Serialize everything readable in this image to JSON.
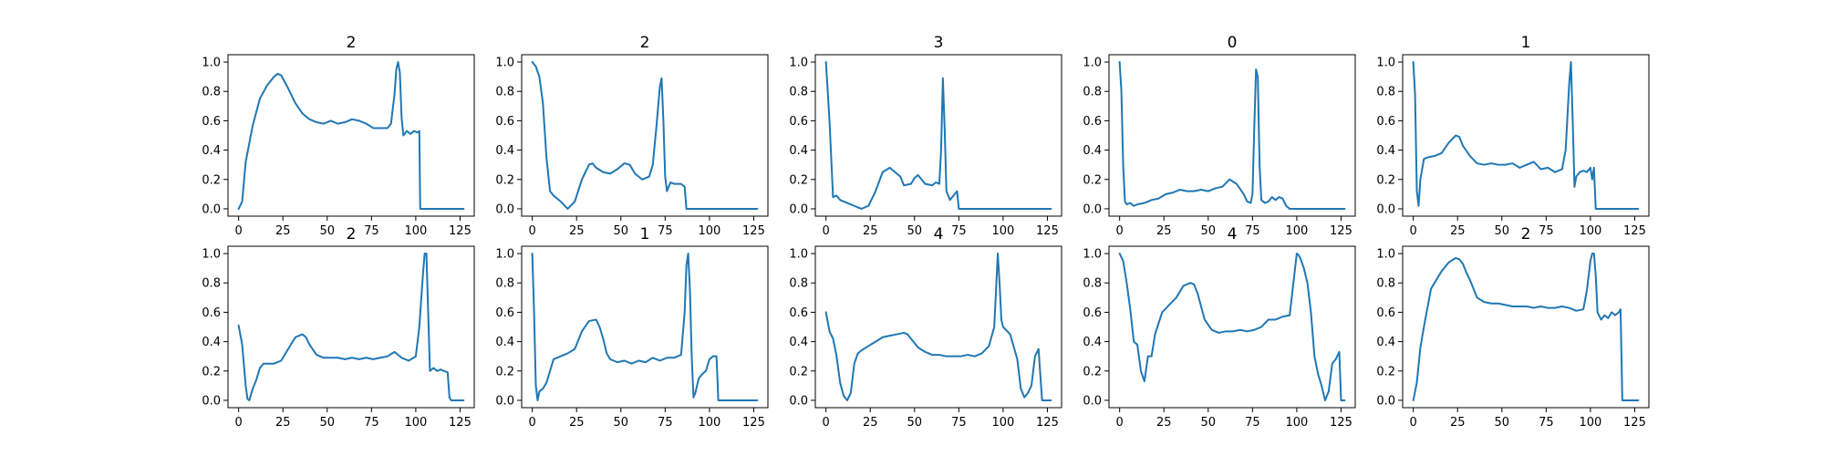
{
  "figure": {
    "line_color": "#1f77b4",
    "rows": 2,
    "cols": 5
  },
  "chart_data": [
    {
      "type": "line",
      "title": "2",
      "xlim": [
        -6,
        133
      ],
      "ylim": [
        -0.05,
        1.05
      ],
      "xticks": [
        0,
        25,
        50,
        75,
        100,
        125
      ],
      "yticks": [
        0.0,
        0.2,
        0.4,
        0.6,
        0.8,
        1.0
      ],
      "x": [
        0,
        2,
        4,
        8,
        12,
        16,
        20,
        22,
        24,
        28,
        32,
        36,
        40,
        44,
        48,
        52,
        56,
        60,
        64,
        68,
        72,
        76,
        80,
        84,
        86,
        88,
        89,
        90,
        91,
        92,
        93,
        95,
        97,
        99,
        101,
        102,
        102.5,
        110,
        120,
        127
      ],
      "y": [
        0.0,
        0.05,
        0.32,
        0.57,
        0.75,
        0.84,
        0.9,
        0.92,
        0.91,
        0.82,
        0.72,
        0.65,
        0.61,
        0.59,
        0.58,
        0.6,
        0.58,
        0.59,
        0.61,
        0.6,
        0.58,
        0.55,
        0.55,
        0.55,
        0.58,
        0.78,
        0.95,
        1.0,
        0.93,
        0.62,
        0.5,
        0.53,
        0.51,
        0.53,
        0.52,
        0.53,
        0.0,
        0.0,
        0.0,
        0.0
      ]
    },
    {
      "type": "line",
      "title": "2",
      "xlim": [
        -6,
        133
      ],
      "ylim": [
        -0.05,
        1.05
      ],
      "xticks": [
        0,
        25,
        50,
        75,
        100,
        125
      ],
      "yticks": [
        0.0,
        0.2,
        0.4,
        0.6,
        0.8,
        1.0
      ],
      "x": [
        0,
        2,
        4,
        6,
        8,
        10,
        12,
        14,
        16,
        20,
        24,
        28,
        32,
        34,
        36,
        40,
        44,
        48,
        52,
        55,
        58,
        62,
        66,
        68,
        70,
        72,
        73,
        74,
        75,
        76,
        78,
        80,
        84,
        86,
        87,
        95,
        110,
        127
      ],
      "y": [
        1.0,
        0.97,
        0.9,
        0.72,
        0.35,
        0.12,
        0.09,
        0.07,
        0.05,
        0.0,
        0.05,
        0.2,
        0.3,
        0.31,
        0.28,
        0.25,
        0.24,
        0.27,
        0.31,
        0.3,
        0.24,
        0.2,
        0.22,
        0.3,
        0.55,
        0.83,
        0.89,
        0.6,
        0.22,
        0.12,
        0.18,
        0.17,
        0.17,
        0.15,
        0.0,
        0.0,
        0.0,
        0.0
      ]
    },
    {
      "type": "line",
      "title": "3",
      "xlim": [
        -6,
        133
      ],
      "ylim": [
        -0.05,
        1.05
      ],
      "xticks": [
        0,
        25,
        50,
        75,
        100,
        125
      ],
      "yticks": [
        0.0,
        0.2,
        0.4,
        0.6,
        0.8,
        1.0
      ],
      "x": [
        0,
        2,
        4,
        6,
        8,
        12,
        16,
        20,
        24,
        28,
        32,
        36,
        40,
        42,
        44,
        48,
        50,
        52,
        56,
        60,
        62,
        64,
        65,
        66,
        67,
        68,
        70,
        74,
        75,
        80,
        100,
        127
      ],
      "y": [
        1.0,
        0.6,
        0.08,
        0.09,
        0.06,
        0.04,
        0.02,
        0.0,
        0.02,
        0.12,
        0.25,
        0.28,
        0.24,
        0.22,
        0.16,
        0.17,
        0.21,
        0.23,
        0.17,
        0.16,
        0.18,
        0.17,
        0.4,
        0.89,
        0.55,
        0.12,
        0.06,
        0.12,
        0.0,
        0.0,
        0.0,
        0.0
      ]
    },
    {
      "type": "line",
      "title": "0",
      "xlim": [
        -6,
        133
      ],
      "ylim": [
        -0.05,
        1.05
      ],
      "xticks": [
        0,
        25,
        50,
        75,
        100,
        125
      ],
      "yticks": [
        0.0,
        0.2,
        0.4,
        0.6,
        0.8,
        1.0
      ],
      "x": [
        0,
        1,
        2,
        3,
        4,
        6,
        8,
        10,
        14,
        18,
        22,
        26,
        30,
        34,
        38,
        42,
        46,
        50,
        54,
        58,
        62,
        66,
        70,
        72,
        74,
        75,
        76,
        77,
        78,
        79,
        80,
        82,
        84,
        86,
        88,
        90,
        92,
        94,
        96,
        100,
        127
      ],
      "y": [
        1.0,
        0.8,
        0.3,
        0.05,
        0.03,
        0.04,
        0.02,
        0.03,
        0.04,
        0.06,
        0.07,
        0.1,
        0.11,
        0.13,
        0.12,
        0.12,
        0.13,
        0.12,
        0.14,
        0.15,
        0.2,
        0.17,
        0.1,
        0.05,
        0.04,
        0.1,
        0.55,
        0.95,
        0.9,
        0.3,
        0.06,
        0.04,
        0.05,
        0.08,
        0.06,
        0.08,
        0.07,
        0.02,
        0.0,
        0.0,
        0.0
      ]
    },
    {
      "type": "line",
      "title": "1",
      "xlim": [
        -6,
        133
      ],
      "ylim": [
        -0.05,
        1.05
      ],
      "xticks": [
        0,
        25,
        50,
        75,
        100,
        125
      ],
      "yticks": [
        0.0,
        0.2,
        0.4,
        0.6,
        0.8,
        1.0
      ],
      "x": [
        0,
        1,
        2,
        3,
        4,
        6,
        8,
        12,
        16,
        20,
        24,
        26,
        28,
        32,
        36,
        40,
        44,
        48,
        52,
        56,
        60,
        64,
        68,
        72,
        76,
        80,
        84,
        86,
        88,
        89,
        90,
        91,
        92,
        94,
        96,
        98,
        100,
        101,
        102,
        103,
        110,
        127
      ],
      "y": [
        1.0,
        0.78,
        0.12,
        0.02,
        0.2,
        0.34,
        0.35,
        0.36,
        0.38,
        0.45,
        0.5,
        0.49,
        0.43,
        0.36,
        0.31,
        0.3,
        0.31,
        0.3,
        0.3,
        0.31,
        0.28,
        0.3,
        0.32,
        0.27,
        0.28,
        0.25,
        0.27,
        0.4,
        0.85,
        1.0,
        0.6,
        0.15,
        0.22,
        0.25,
        0.26,
        0.25,
        0.28,
        0.2,
        0.28,
        0.0,
        0.0,
        0.0
      ]
    },
    {
      "type": "line",
      "title": "2",
      "xlim": [
        -6,
        133
      ],
      "ylim": [
        -0.05,
        1.05
      ],
      "xticks": [
        0,
        25,
        50,
        75,
        100,
        125
      ],
      "yticks": [
        0.0,
        0.2,
        0.4,
        0.6,
        0.8,
        1.0
      ],
      "x": [
        0,
        2,
        4,
        5,
        6,
        8,
        10,
        12,
        14,
        16,
        20,
        24,
        28,
        32,
        36,
        38,
        40,
        44,
        48,
        52,
        56,
        60,
        64,
        68,
        72,
        76,
        80,
        84,
        88,
        92,
        96,
        100,
        102,
        104,
        105,
        106,
        107,
        108,
        110,
        112,
        114,
        116,
        118,
        119,
        120,
        122,
        127
      ],
      "y": [
        0.51,
        0.38,
        0.1,
        0.01,
        0.0,
        0.08,
        0.14,
        0.22,
        0.25,
        0.25,
        0.25,
        0.27,
        0.35,
        0.43,
        0.45,
        0.43,
        0.38,
        0.31,
        0.29,
        0.29,
        0.29,
        0.28,
        0.29,
        0.28,
        0.29,
        0.28,
        0.29,
        0.3,
        0.33,
        0.29,
        0.27,
        0.3,
        0.5,
        0.85,
        1.0,
        1.0,
        0.6,
        0.2,
        0.22,
        0.2,
        0.21,
        0.2,
        0.19,
        0.02,
        0.0,
        0.0,
        0.0
      ]
    },
    {
      "type": "line",
      "title": "1",
      "xlim": [
        -6,
        133
      ],
      "ylim": [
        -0.05,
        1.05
      ],
      "xticks": [
        0,
        25,
        50,
        75,
        100,
        125
      ],
      "yticks": [
        0.0,
        0.2,
        0.4,
        0.6,
        0.8,
        1.0
      ],
      "x": [
        0,
        1,
        2,
        3,
        4,
        6,
        8,
        10,
        12,
        16,
        20,
        24,
        28,
        32,
        36,
        38,
        40,
        42,
        44,
        48,
        52,
        56,
        60,
        64,
        68,
        72,
        76,
        80,
        84,
        86,
        87,
        88,
        89,
        90,
        91,
        92,
        94,
        96,
        98,
        100,
        102,
        104,
        105,
        110,
        127
      ],
      "y": [
        1.0,
        0.6,
        0.1,
        0.0,
        0.06,
        0.08,
        0.12,
        0.2,
        0.28,
        0.3,
        0.32,
        0.35,
        0.47,
        0.54,
        0.55,
        0.5,
        0.42,
        0.32,
        0.28,
        0.26,
        0.27,
        0.25,
        0.27,
        0.26,
        0.29,
        0.27,
        0.29,
        0.29,
        0.31,
        0.6,
        0.92,
        1.0,
        0.75,
        0.3,
        0.02,
        0.05,
        0.15,
        0.18,
        0.2,
        0.28,
        0.3,
        0.3,
        0.0,
        0.0,
        0.0
      ]
    },
    {
      "type": "line",
      "title": "4",
      "xlim": [
        -6,
        133
      ],
      "ylim": [
        -0.05,
        1.05
      ],
      "xticks": [
        0,
        25,
        50,
        75,
        100,
        125
      ],
      "yticks": [
        0.0,
        0.2,
        0.4,
        0.6,
        0.8,
        1.0
      ],
      "x": [
        0,
        2,
        4,
        6,
        8,
        10,
        12,
        14,
        16,
        18,
        20,
        24,
        28,
        32,
        36,
        40,
        44,
        46,
        48,
        52,
        56,
        60,
        64,
        68,
        72,
        76,
        80,
        84,
        88,
        92,
        95,
        96,
        97,
        98,
        99,
        100,
        104,
        108,
        110,
        112,
        114,
        116,
        118,
        120,
        122,
        124,
        125,
        127
      ],
      "y": [
        0.6,
        0.47,
        0.42,
        0.3,
        0.12,
        0.03,
        0.0,
        0.05,
        0.25,
        0.32,
        0.34,
        0.37,
        0.4,
        0.43,
        0.44,
        0.45,
        0.46,
        0.45,
        0.42,
        0.36,
        0.33,
        0.31,
        0.31,
        0.3,
        0.3,
        0.3,
        0.31,
        0.3,
        0.32,
        0.37,
        0.5,
        0.75,
        1.0,
        0.8,
        0.55,
        0.5,
        0.45,
        0.28,
        0.08,
        0.02,
        0.05,
        0.1,
        0.3,
        0.35,
        0.0,
        0.0,
        0.0,
        0.0
      ]
    },
    {
      "type": "line",
      "title": "4",
      "xlim": [
        -6,
        133
      ],
      "ylim": [
        -0.05,
        1.05
      ],
      "xticks": [
        0,
        25,
        50,
        75,
        100,
        125
      ],
      "yticks": [
        0.0,
        0.2,
        0.4,
        0.6,
        0.8,
        1.0
      ],
      "x": [
        0,
        2,
        4,
        6,
        8,
        10,
        12,
        14,
        16,
        18,
        20,
        24,
        28,
        32,
        36,
        40,
        42,
        44,
        48,
        52,
        56,
        60,
        64,
        68,
        72,
        76,
        80,
        84,
        88,
        92,
        96,
        100,
        101,
        102,
        104,
        106,
        108,
        110,
        112,
        114,
        116,
        118,
        120,
        122,
        124,
        125,
        127
      ],
      "y": [
        1.0,
        0.95,
        0.8,
        0.62,
        0.4,
        0.38,
        0.2,
        0.13,
        0.3,
        0.3,
        0.45,
        0.6,
        0.65,
        0.7,
        0.78,
        0.8,
        0.79,
        0.73,
        0.55,
        0.48,
        0.46,
        0.47,
        0.47,
        0.48,
        0.47,
        0.48,
        0.5,
        0.55,
        0.55,
        0.57,
        0.58,
        1.0,
        0.99,
        0.97,
        0.9,
        0.8,
        0.6,
        0.3,
        0.18,
        0.1,
        0.0,
        0.06,
        0.25,
        0.28,
        0.33,
        0.0,
        0.0
      ]
    },
    {
      "type": "line",
      "title": "2",
      "xlim": [
        -6,
        133
      ],
      "ylim": [
        -0.05,
        1.05
      ],
      "xticks": [
        0,
        25,
        50,
        75,
        100,
        125
      ],
      "yticks": [
        0.0,
        0.2,
        0.4,
        0.6,
        0.8,
        1.0
      ],
      "x": [
        0,
        2,
        4,
        6,
        8,
        10,
        12,
        14,
        16,
        20,
        24,
        26,
        28,
        30,
        32,
        34,
        36,
        40,
        44,
        48,
        52,
        56,
        60,
        64,
        68,
        72,
        76,
        80,
        84,
        88,
        92,
        96,
        98,
        100,
        101,
        102,
        103,
        104,
        106,
        108,
        110,
        112,
        114,
        116,
        117,
        118,
        127
      ],
      "y": [
        0.0,
        0.12,
        0.36,
        0.5,
        0.63,
        0.76,
        0.8,
        0.84,
        0.88,
        0.94,
        0.97,
        0.96,
        0.93,
        0.87,
        0.82,
        0.76,
        0.7,
        0.67,
        0.66,
        0.66,
        0.65,
        0.64,
        0.64,
        0.64,
        0.63,
        0.64,
        0.63,
        0.63,
        0.64,
        0.63,
        0.61,
        0.62,
        0.75,
        0.95,
        1.0,
        1.0,
        0.85,
        0.6,
        0.55,
        0.58,
        0.56,
        0.6,
        0.58,
        0.6,
        0.62,
        0.0,
        0.0
      ]
    }
  ]
}
